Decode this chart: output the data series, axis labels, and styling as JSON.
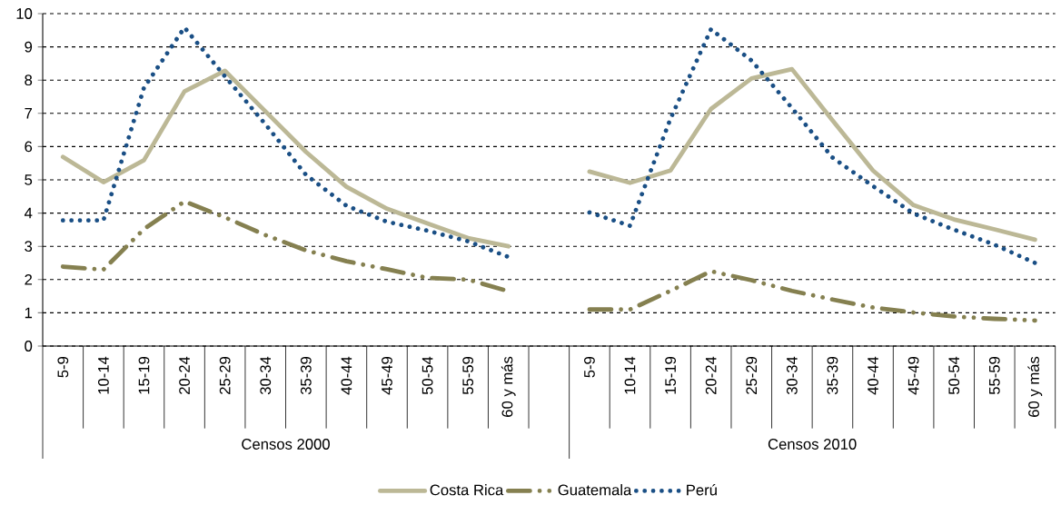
{
  "chart_data": {
    "type": "line",
    "categories": [
      "5-9",
      "10-14",
      "15-19",
      "20-24",
      "25-29",
      "30-34",
      "35-39",
      "40-44",
      "45-49",
      "50-54",
      "55-59",
      "60 y más",
      null,
      "5-9",
      "10-14",
      "15-19",
      "20-24",
      "25-29",
      "30-34",
      "35-39",
      "40-44",
      "45-49",
      "50-54",
      "55-59",
      "60 y más"
    ],
    "series": [
      {
        "name": "Costa Rica",
        "color": "#bcb896",
        "line_style": "solid",
        "values": [
          5.69,
          4.93,
          5.59,
          7.66,
          8.28,
          7.06,
          5.84,
          4.79,
          4.13,
          3.69,
          3.25,
          3.0,
          null,
          5.25,
          4.91,
          5.28,
          7.13,
          8.05,
          8.33,
          6.79,
          5.28,
          4.24,
          3.81,
          3.51,
          3.2
        ]
      },
      {
        "name": "Guatemala",
        "color": "#858050",
        "line_style": "dashed",
        "values": [
          2.39,
          2.3,
          3.52,
          4.35,
          3.87,
          3.34,
          2.88,
          2.55,
          2.31,
          2.05,
          2.0,
          1.65,
          null,
          1.1,
          1.1,
          1.66,
          2.25,
          1.98,
          1.66,
          1.4,
          1.16,
          1.01,
          0.89,
          0.82,
          0.77
        ]
      },
      {
        "name": "Perú",
        "color": "#1a4f85",
        "line_style": "dotted",
        "values": [
          3.78,
          3.78,
          7.77,
          9.58,
          8.11,
          6.67,
          5.15,
          4.22,
          3.74,
          3.47,
          3.15,
          2.68,
          null,
          4.02,
          3.62,
          6.84,
          9.53,
          8.59,
          7.16,
          5.67,
          4.81,
          3.99,
          3.5,
          3.05,
          2.5
        ]
      }
    ],
    "ylim": [
      0,
      10
    ],
    "yticks": [
      0,
      1,
      2,
      3,
      4,
      5,
      6,
      7,
      8,
      9,
      10
    ],
    "grid": "y",
    "legend": "bottom",
    "annotations": [
      "Censos 2000",
      "Censos 2010"
    ]
  }
}
